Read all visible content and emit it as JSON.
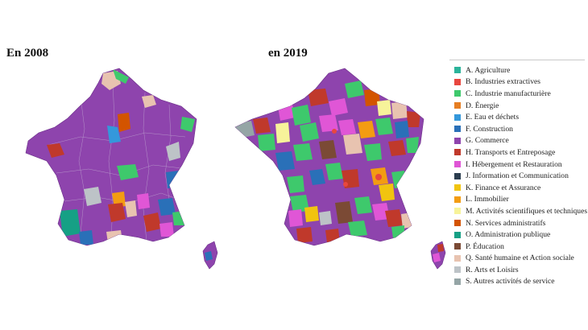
{
  "titles": {
    "left": "En 2008",
    "right": "en 2019"
  },
  "legend": [
    {
      "code": "A",
      "label": "A. Agriculture",
      "color": "#2bb39a"
    },
    {
      "code": "B",
      "label": "B. Industries extractives",
      "color": "#e8473f"
    },
    {
      "code": "C",
      "label": "C. Industrie manufacturière",
      "color": "#3ec96c"
    },
    {
      "code": "D",
      "label": "D. Énergie",
      "color": "#e67e22"
    },
    {
      "code": "E",
      "label": "E. Eau et déchets",
      "color": "#3498db"
    },
    {
      "code": "F",
      "label": "F. Construction",
      "color": "#2a70b8"
    },
    {
      "code": "G",
      "label": "G. Commerce",
      "color": "#8e44ad"
    },
    {
      "code": "H",
      "label": "H. Transports et Entreposage",
      "color": "#c0392b"
    },
    {
      "code": "I",
      "label": "I. Hébergement et Restauration",
      "color": "#e056d6"
    },
    {
      "code": "J",
      "label": "J. Information et Communication",
      "color": "#2c3e50"
    },
    {
      "code": "K",
      "label": "K. Finance et Assurance",
      "color": "#f1c40f"
    },
    {
      "code": "L",
      "label": "L. Immobilier",
      "color": "#f39c12"
    },
    {
      "code": "M",
      "label": "M. Activités scientifiques et techniques",
      "color": "#f7f39a"
    },
    {
      "code": "N",
      "label": "N. Services administratifs",
      "color": "#d35400"
    },
    {
      "code": "O",
      "label": "O. Administration publique",
      "color": "#16a085"
    },
    {
      "code": "P",
      "label": "P. Éducation",
      "color": "#7b4a35"
    },
    {
      "code": "Q",
      "label": "Q. Santé humaine et Action sociale",
      "color": "#e8c3b0"
    },
    {
      "code": "R",
      "label": "R. Arts et Loisirs",
      "color": "#bdc3c7"
    },
    {
      "code": "S",
      "label": "S. Autres activités de service",
      "color": "#95a5a6"
    }
  ]
}
